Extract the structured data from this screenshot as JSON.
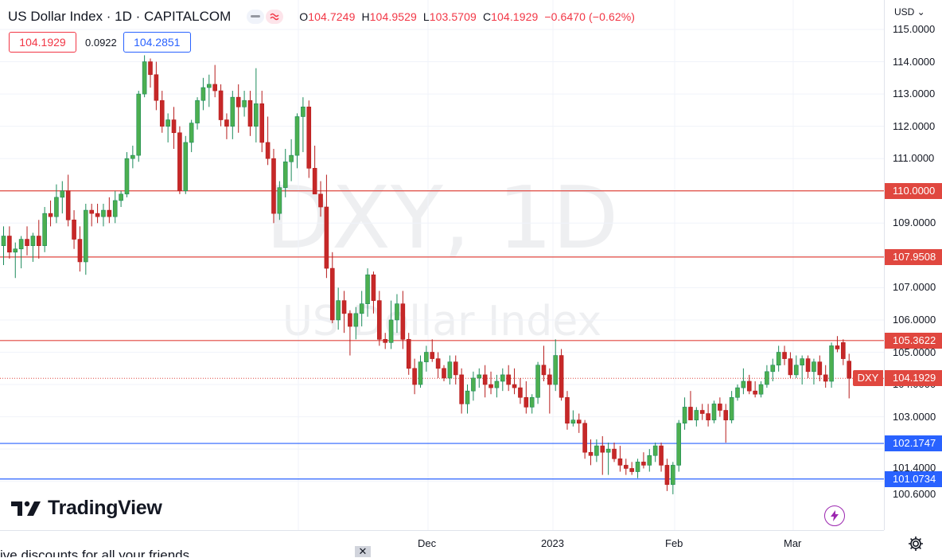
{
  "header": {
    "symbol_title": "US Dollar Index · 1D · CAPITALCOM",
    "minus_icon": "minus-icon",
    "wave_icon": "wave-icon",
    "ohlc": {
      "o_label": "O",
      "o": "104.7249",
      "h_label": "H",
      "h": "104.9529",
      "l_label": "L",
      "l": "103.5709",
      "c_label": "C",
      "c": "104.1929",
      "change": "−0.6470 (−0.62%)"
    }
  },
  "quote": {
    "bid": "104.1929",
    "spread": "0.0922",
    "ask": "104.2851"
  },
  "watermark": {
    "line1": "DXY, 1D",
    "line2": "US Dollar Index"
  },
  "logo": {
    "text": "TradingView",
    "icon": "tradingview-logo-icon"
  },
  "flash_icon": "lightning-icon",
  "price_axis": {
    "currency": "USD ⌄",
    "ticks": [
      "115.0000",
      "114.0000",
      "113.0000",
      "112.0000",
      "111.0000",
      "109.0000",
      "107.0000",
      "106.0000",
      "105.0000",
      "104.0000",
      "103.0000",
      "101.4000",
      "100.6000"
    ]
  },
  "levels": [
    {
      "value": 110.0,
      "label": "110.0000",
      "color": "#e0473f"
    },
    {
      "value": 107.9508,
      "label": "107.9508",
      "color": "#e0473f"
    },
    {
      "value": 105.3622,
      "label": "105.3622",
      "color": "#e0473f"
    },
    {
      "value": 102.1747,
      "label": "102.1747",
      "color": "#2962ff"
    },
    {
      "value": 101.0734,
      "label": "101.0734",
      "color": "#2962ff"
    }
  ],
  "last_price": {
    "symbol_tag": "DXY",
    "label": "104.1929",
    "value": 104.1929,
    "color": "#e0473f"
  },
  "time_axis": {
    "labels": [
      "Dec",
      "2023",
      "Feb",
      "Mar"
    ]
  },
  "settings_icon": "gear-icon",
  "promo": {
    "text": "ive discounts for all your friends",
    "close": "✕"
  },
  "colors": {
    "up": "#26a69a",
    "down": "#ef5350",
    "up_body": "#4caf50",
    "down_body": "#c62828"
  },
  "chart_data": {
    "type": "candlestick",
    "symbol": "DXY",
    "interval": "1D",
    "ylim": [
      100.25,
      115.4
    ],
    "candles": [
      {
        "o": 108.3,
        "h": 108.9,
        "l": 107.7,
        "c": 108.6
      },
      {
        "o": 108.6,
        "h": 108.9,
        "l": 107.9,
        "c": 108.1
      },
      {
        "o": 108.1,
        "h": 108.4,
        "l": 107.3,
        "c": 108.2
      },
      {
        "o": 108.2,
        "h": 108.6,
        "l": 107.6,
        "c": 108.5
      },
      {
        "o": 108.5,
        "h": 108.9,
        "l": 108.0,
        "c": 108.3
      },
      {
        "o": 108.3,
        "h": 108.7,
        "l": 107.8,
        "c": 108.6
      },
      {
        "o": 108.6,
        "h": 109.1,
        "l": 107.9,
        "c": 108.3
      },
      {
        "o": 108.3,
        "h": 109.5,
        "l": 108.1,
        "c": 109.3
      },
      {
        "o": 109.3,
        "h": 109.7,
        "l": 108.9,
        "c": 109.2
      },
      {
        "o": 109.2,
        "h": 110.2,
        "l": 109.0,
        "c": 109.8
      },
      {
        "o": 109.8,
        "h": 110.3,
        "l": 109.3,
        "c": 110.0
      },
      {
        "o": 110.0,
        "h": 110.5,
        "l": 108.9,
        "c": 109.1
      },
      {
        "o": 109.1,
        "h": 109.4,
        "l": 108.2,
        "c": 108.5
      },
      {
        "o": 108.5,
        "h": 108.9,
        "l": 107.5,
        "c": 107.8
      },
      {
        "o": 107.8,
        "h": 109.6,
        "l": 107.4,
        "c": 109.4
      },
      {
        "o": 109.4,
        "h": 109.6,
        "l": 108.9,
        "c": 109.3
      },
      {
        "o": 109.3,
        "h": 109.6,
        "l": 109.0,
        "c": 109.2
      },
      {
        "o": 109.2,
        "h": 109.6,
        "l": 108.9,
        "c": 109.4
      },
      {
        "o": 109.4,
        "h": 109.8,
        "l": 109.0,
        "c": 109.2
      },
      {
        "o": 109.2,
        "h": 110.0,
        "l": 109.0,
        "c": 109.7
      },
      {
        "o": 109.7,
        "h": 110.0,
        "l": 109.5,
        "c": 109.9
      },
      {
        "o": 109.9,
        "h": 111.2,
        "l": 109.8,
        "c": 111.0
      },
      {
        "o": 111.0,
        "h": 111.4,
        "l": 110.7,
        "c": 111.1
      },
      {
        "o": 111.1,
        "h": 113.1,
        "l": 110.9,
        "c": 113.0
      },
      {
        "o": 113.0,
        "h": 114.2,
        "l": 112.9,
        "c": 114.0
      },
      {
        "o": 114.0,
        "h": 114.1,
        "l": 113.2,
        "c": 113.6
      },
      {
        "o": 113.6,
        "h": 114.0,
        "l": 112.5,
        "c": 112.8
      },
      {
        "o": 112.8,
        "h": 113.1,
        "l": 111.8,
        "c": 112.0
      },
      {
        "o": 112.0,
        "h": 112.4,
        "l": 111.5,
        "c": 112.2
      },
      {
        "o": 112.2,
        "h": 112.6,
        "l": 111.3,
        "c": 111.8
      },
      {
        "o": 111.8,
        "h": 112.0,
        "l": 109.9,
        "c": 110.0
      },
      {
        "o": 110.0,
        "h": 111.7,
        "l": 109.9,
        "c": 111.5
      },
      {
        "o": 111.5,
        "h": 112.2,
        "l": 111.2,
        "c": 112.1
      },
      {
        "o": 112.1,
        "h": 112.9,
        "l": 111.9,
        "c": 112.8
      },
      {
        "o": 112.8,
        "h": 113.5,
        "l": 112.5,
        "c": 113.2
      },
      {
        "o": 113.2,
        "h": 113.6,
        "l": 112.6,
        "c": 113.3
      },
      {
        "o": 113.3,
        "h": 113.9,
        "l": 112.9,
        "c": 113.1
      },
      {
        "o": 113.1,
        "h": 113.3,
        "l": 112.0,
        "c": 112.2
      },
      {
        "o": 112.2,
        "h": 112.4,
        "l": 111.6,
        "c": 112.0
      },
      {
        "o": 112.0,
        "h": 113.1,
        "l": 111.6,
        "c": 112.9
      },
      {
        "o": 112.9,
        "h": 113.3,
        "l": 111.8,
        "c": 112.6
      },
      {
        "o": 112.6,
        "h": 113.1,
        "l": 112.3,
        "c": 112.8
      },
      {
        "o": 112.8,
        "h": 113.1,
        "l": 111.7,
        "c": 112.0
      },
      {
        "o": 112.0,
        "h": 113.8,
        "l": 111.5,
        "c": 112.7
      },
      {
        "o": 112.7,
        "h": 113.1,
        "l": 111.2,
        "c": 111.5
      },
      {
        "o": 111.5,
        "h": 112.3,
        "l": 110.8,
        "c": 111.0
      },
      {
        "o": 111.0,
        "h": 111.3,
        "l": 109.0,
        "c": 109.3
      },
      {
        "o": 109.3,
        "h": 110.3,
        "l": 109.1,
        "c": 110.1
      },
      {
        "o": 110.1,
        "h": 111.3,
        "l": 109.8,
        "c": 110.9
      },
      {
        "o": 110.9,
        "h": 111.6,
        "l": 110.3,
        "c": 111.1
      },
      {
        "o": 111.1,
        "h": 112.4,
        "l": 110.7,
        "c": 112.3
      },
      {
        "o": 112.3,
        "h": 112.9,
        "l": 111.2,
        "c": 112.6
      },
      {
        "o": 112.6,
        "h": 112.8,
        "l": 110.4,
        "c": 110.7
      },
      {
        "o": 110.7,
        "h": 111.4,
        "l": 109.9,
        "c": 109.9
      },
      {
        "o": 109.9,
        "h": 110.3,
        "l": 109.2,
        "c": 109.5
      },
      {
        "o": 109.5,
        "h": 110.5,
        "l": 107.3,
        "c": 107.6
      },
      {
        "o": 107.6,
        "h": 108.1,
        "l": 105.9,
        "c": 106.0
      },
      {
        "o": 106.0,
        "h": 107.0,
        "l": 105.7,
        "c": 106.6
      },
      {
        "o": 106.6,
        "h": 106.9,
        "l": 105.6,
        "c": 106.2
      },
      {
        "o": 106.2,
        "h": 106.3,
        "l": 104.9,
        "c": 105.8
      },
      {
        "o": 105.8,
        "h": 106.4,
        "l": 105.4,
        "c": 106.2
      },
      {
        "o": 106.2,
        "h": 106.9,
        "l": 105.8,
        "c": 106.5
      },
      {
        "o": 106.5,
        "h": 107.6,
        "l": 106.1,
        "c": 107.4
      },
      {
        "o": 107.4,
        "h": 107.5,
        "l": 106.2,
        "c": 106.6
      },
      {
        "o": 106.6,
        "h": 106.9,
        "l": 105.2,
        "c": 105.4
      },
      {
        "o": 105.4,
        "h": 105.6,
        "l": 105.1,
        "c": 105.3
      },
      {
        "o": 105.3,
        "h": 106.6,
        "l": 105.1,
        "c": 106.0
      },
      {
        "o": 106.0,
        "h": 106.8,
        "l": 105.6,
        "c": 106.5
      },
      {
        "o": 106.5,
        "h": 106.9,
        "l": 105.1,
        "c": 105.4
      },
      {
        "o": 105.4,
        "h": 105.6,
        "l": 104.3,
        "c": 104.5
      },
      {
        "o": 104.5,
        "h": 104.8,
        "l": 103.7,
        "c": 104.0
      },
      {
        "o": 104.0,
        "h": 104.9,
        "l": 103.9,
        "c": 104.7
      },
      {
        "o": 104.7,
        "h": 105.2,
        "l": 104.4,
        "c": 105.0
      },
      {
        "o": 105.0,
        "h": 105.4,
        "l": 104.7,
        "c": 104.8
      },
      {
        "o": 104.8,
        "h": 105.0,
        "l": 104.2,
        "c": 104.5
      },
      {
        "o": 104.5,
        "h": 104.6,
        "l": 104.1,
        "c": 104.2
      },
      {
        "o": 104.2,
        "h": 104.9,
        "l": 104.0,
        "c": 104.7
      },
      {
        "o": 104.7,
        "h": 104.9,
        "l": 104.0,
        "c": 104.3
      },
      {
        "o": 104.3,
        "h": 104.5,
        "l": 103.1,
        "c": 103.4
      },
      {
        "o": 103.4,
        "h": 104.0,
        "l": 103.1,
        "c": 103.8
      },
      {
        "o": 103.8,
        "h": 104.4,
        "l": 103.5,
        "c": 104.2
      },
      {
        "o": 104.2,
        "h": 104.5,
        "l": 103.9,
        "c": 104.3
      },
      {
        "o": 104.3,
        "h": 104.6,
        "l": 103.6,
        "c": 104.0
      },
      {
        "o": 104.0,
        "h": 104.4,
        "l": 103.7,
        "c": 103.9
      },
      {
        "o": 103.9,
        "h": 104.3,
        "l": 103.6,
        "c": 104.1
      },
      {
        "o": 104.1,
        "h": 104.5,
        "l": 103.8,
        "c": 104.3
      },
      {
        "o": 104.3,
        "h": 104.6,
        "l": 103.8,
        "c": 104.0
      },
      {
        "o": 104.0,
        "h": 104.5,
        "l": 103.7,
        "c": 103.9
      },
      {
        "o": 103.9,
        "h": 104.2,
        "l": 103.4,
        "c": 103.6
      },
      {
        "o": 103.6,
        "h": 104.1,
        "l": 103.1,
        "c": 103.3
      },
      {
        "o": 103.3,
        "h": 103.7,
        "l": 103.1,
        "c": 103.6
      },
      {
        "o": 103.6,
        "h": 104.7,
        "l": 103.4,
        "c": 104.6
      },
      {
        "o": 104.6,
        "h": 105.2,
        "l": 104.1,
        "c": 104.3
      },
      {
        "o": 104.3,
        "h": 104.5,
        "l": 103.1,
        "c": 104.0
      },
      {
        "o": 104.0,
        "h": 105.4,
        "l": 103.8,
        "c": 104.9
      },
      {
        "o": 104.9,
        "h": 105.1,
        "l": 103.5,
        "c": 103.6
      },
      {
        "o": 103.6,
        "h": 103.8,
        "l": 102.6,
        "c": 102.8
      },
      {
        "o": 102.8,
        "h": 103.2,
        "l": 102.7,
        "c": 102.9
      },
      {
        "o": 102.9,
        "h": 103.1,
        "l": 102.5,
        "c": 102.8
      },
      {
        "o": 102.8,
        "h": 102.9,
        "l": 101.7,
        "c": 101.9
      },
      {
        "o": 101.9,
        "h": 102.3,
        "l": 101.5,
        "c": 101.8
      },
      {
        "o": 101.8,
        "h": 102.3,
        "l": 101.6,
        "c": 102.1
      },
      {
        "o": 102.1,
        "h": 102.4,
        "l": 101.2,
        "c": 101.9
      },
      {
        "o": 101.9,
        "h": 102.2,
        "l": 101.2,
        "c": 102.0
      },
      {
        "o": 102.0,
        "h": 102.2,
        "l": 101.6,
        "c": 101.7
      },
      {
        "o": 101.7,
        "h": 102.1,
        "l": 101.3,
        "c": 101.5
      },
      {
        "o": 101.5,
        "h": 101.7,
        "l": 101.2,
        "c": 101.4
      },
      {
        "o": 101.4,
        "h": 101.6,
        "l": 101.2,
        "c": 101.3
      },
      {
        "o": 101.3,
        "h": 101.7,
        "l": 101.1,
        "c": 101.6
      },
      {
        "o": 101.6,
        "h": 101.9,
        "l": 101.4,
        "c": 101.5
      },
      {
        "o": 101.5,
        "h": 102.0,
        "l": 101.3,
        "c": 101.8
      },
      {
        "o": 101.8,
        "h": 102.2,
        "l": 101.6,
        "c": 102.1
      },
      {
        "o": 102.1,
        "h": 102.2,
        "l": 101.3,
        "c": 101.5
      },
      {
        "o": 101.5,
        "h": 101.7,
        "l": 100.7,
        "c": 100.9
      },
      {
        "o": 100.9,
        "h": 101.6,
        "l": 100.6,
        "c": 101.5
      },
      {
        "o": 101.5,
        "h": 102.9,
        "l": 101.3,
        "c": 102.8
      },
      {
        "o": 102.8,
        "h": 103.6,
        "l": 102.6,
        "c": 103.3
      },
      {
        "o": 103.3,
        "h": 103.8,
        "l": 102.9,
        "c": 102.9
      },
      {
        "o": 102.9,
        "h": 103.3,
        "l": 102.7,
        "c": 103.2
      },
      {
        "o": 103.2,
        "h": 103.4,
        "l": 102.9,
        "c": 103.1
      },
      {
        "o": 103.1,
        "h": 103.4,
        "l": 102.7,
        "c": 102.9
      },
      {
        "o": 102.9,
        "h": 103.5,
        "l": 102.8,
        "c": 103.4
      },
      {
        "o": 103.4,
        "h": 103.6,
        "l": 103.0,
        "c": 103.2
      },
      {
        "o": 103.2,
        "h": 103.4,
        "l": 102.2,
        "c": 102.9
      },
      {
        "o": 102.9,
        "h": 103.8,
        "l": 102.8,
        "c": 103.6
      },
      {
        "o": 103.6,
        "h": 104.0,
        "l": 103.5,
        "c": 103.9
      },
      {
        "o": 103.9,
        "h": 104.5,
        "l": 103.7,
        "c": 104.1
      },
      {
        "o": 104.1,
        "h": 104.3,
        "l": 103.7,
        "c": 103.8
      },
      {
        "o": 103.8,
        "h": 104.1,
        "l": 103.6,
        "c": 103.7
      },
      {
        "o": 103.7,
        "h": 104.1,
        "l": 103.6,
        "c": 104.0
      },
      {
        "o": 104.0,
        "h": 104.6,
        "l": 103.9,
        "c": 104.4
      },
      {
        "o": 104.4,
        "h": 104.8,
        "l": 104.1,
        "c": 104.6
      },
      {
        "o": 104.6,
        "h": 105.2,
        "l": 104.4,
        "c": 105.0
      },
      {
        "o": 105.0,
        "h": 105.2,
        "l": 104.6,
        "c": 104.8
      },
      {
        "o": 104.8,
        "h": 105.0,
        "l": 104.2,
        "c": 104.3
      },
      {
        "o": 104.3,
        "h": 104.9,
        "l": 104.2,
        "c": 104.6
      },
      {
        "o": 104.6,
        "h": 104.9,
        "l": 104.0,
        "c": 104.8
      },
      {
        "o": 104.8,
        "h": 104.9,
        "l": 104.2,
        "c": 104.4
      },
      {
        "o": 104.4,
        "h": 104.8,
        "l": 104.0,
        "c": 104.7
      },
      {
        "o": 104.7,
        "h": 104.9,
        "l": 104.1,
        "c": 104.3
      },
      {
        "o": 104.3,
        "h": 104.6,
        "l": 103.9,
        "c": 104.1
      },
      {
        "o": 104.1,
        "h": 105.3,
        "l": 103.9,
        "c": 105.2
      },
      {
        "o": 105.2,
        "h": 105.5,
        "l": 105.0,
        "c": 105.1
      },
      {
        "o": 105.3,
        "h": 105.4,
        "l": 104.6,
        "c": 104.8
      },
      {
        "o": 104.7249,
        "h": 104.9529,
        "l": 103.5709,
        "c": 104.1929
      }
    ]
  }
}
